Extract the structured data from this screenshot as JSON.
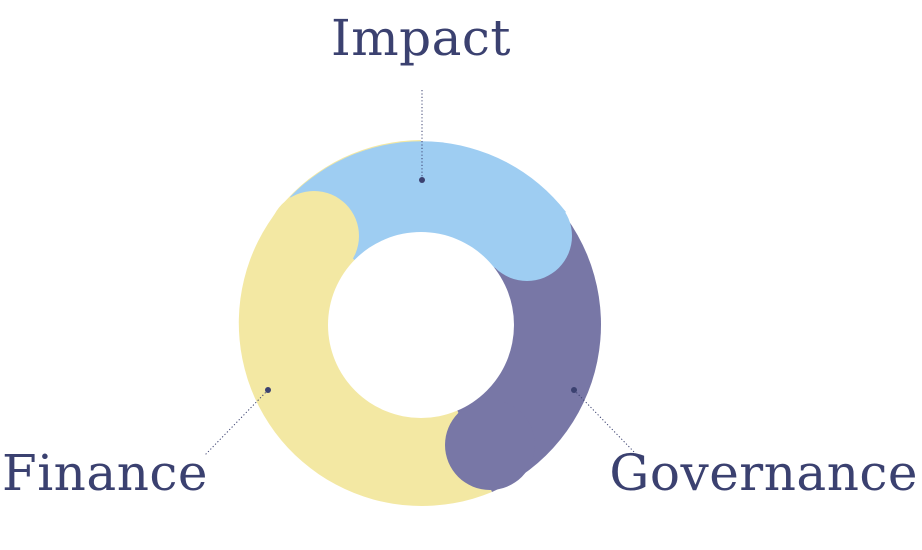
{
  "diagram": {
    "segments": [
      {
        "id": "impact",
        "label": "Impact",
        "color": "#9ecdf2"
      },
      {
        "id": "governance",
        "label": "Governance",
        "color": "#7877a6"
      },
      {
        "id": "finance",
        "label": "Finance",
        "color": "#f3e8a3"
      }
    ],
    "text_color": "#3b4170"
  }
}
